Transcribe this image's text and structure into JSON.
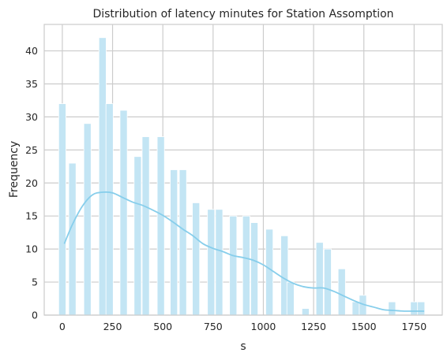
{
  "chart_data": {
    "type": "bar",
    "title": "Distribution of latency minutes for Station Assomption",
    "xlabel": "s",
    "ylabel": "Frequency",
    "xlim": [
      -90,
      1890
    ],
    "ylim": [
      0,
      44
    ],
    "x_ticks": [
      0,
      250,
      500,
      750,
      1000,
      1250,
      1500,
      1750
    ],
    "y_ticks": [
      0,
      5,
      10,
      15,
      20,
      25,
      30,
      35,
      40
    ],
    "grid": true,
    "bin_width": 36,
    "bars": [
      {
        "x": 0,
        "value": 32
      },
      {
        "x": 50,
        "value": 23
      },
      {
        "x": 125,
        "value": 29
      },
      {
        "x": 200,
        "value": 42
      },
      {
        "x": 235,
        "value": 32
      },
      {
        "x": 305,
        "value": 31
      },
      {
        "x": 375,
        "value": 24
      },
      {
        "x": 415,
        "value": 27
      },
      {
        "x": 490,
        "value": 27
      },
      {
        "x": 555,
        "value": 22
      },
      {
        "x": 600,
        "value": 22
      },
      {
        "x": 665,
        "value": 17
      },
      {
        "x": 740,
        "value": 16
      },
      {
        "x": 780,
        "value": 16
      },
      {
        "x": 850,
        "value": 15
      },
      {
        "x": 915,
        "value": 15
      },
      {
        "x": 955,
        "value": 14
      },
      {
        "x": 1030,
        "value": 13
      },
      {
        "x": 1105,
        "value": 12
      },
      {
        "x": 1135,
        "value": 5
      },
      {
        "x": 1210,
        "value": 1
      },
      {
        "x": 1280,
        "value": 11
      },
      {
        "x": 1320,
        "value": 10
      },
      {
        "x": 1390,
        "value": 7
      },
      {
        "x": 1460,
        "value": 2
      },
      {
        "x": 1495,
        "value": 3
      },
      {
        "x": 1640,
        "value": 2
      },
      {
        "x": 1750,
        "value": 2
      },
      {
        "x": 1785,
        "value": 2
      }
    ],
    "kde": {
      "x": [
        10,
        50,
        100,
        150,
        200,
        250,
        300,
        350,
        400,
        450,
        500,
        550,
        600,
        650,
        700,
        750,
        800,
        850,
        900,
        950,
        1000,
        1050,
        1100,
        1150,
        1200,
        1250,
        1300,
        1350,
        1400,
        1450,
        1500,
        1550,
        1600,
        1650,
        1700,
        1750,
        1800
      ],
      "y": [
        10.8,
        13.7,
        16.5,
        18.2,
        18.6,
        18.5,
        17.8,
        17.1,
        16.6,
        15.9,
        15.1,
        14.1,
        13.0,
        12.0,
        10.8,
        10.1,
        9.6,
        9.0,
        8.7,
        8.3,
        7.6,
        6.6,
        5.6,
        4.8,
        4.3,
        4.1,
        4.1,
        3.6,
        2.9,
        2.2,
        1.6,
        1.2,
        0.8,
        0.7,
        0.6,
        0.6,
        0.6
      ]
    }
  },
  "colors": {
    "bar_fill": "#c3e5f4",
    "bar_stroke": "#ffffff",
    "kde_line": "#87ceeb",
    "grid": "#cccccc",
    "axis_spine": "#cccccc",
    "text": "#262626",
    "background": "#ffffff"
  }
}
